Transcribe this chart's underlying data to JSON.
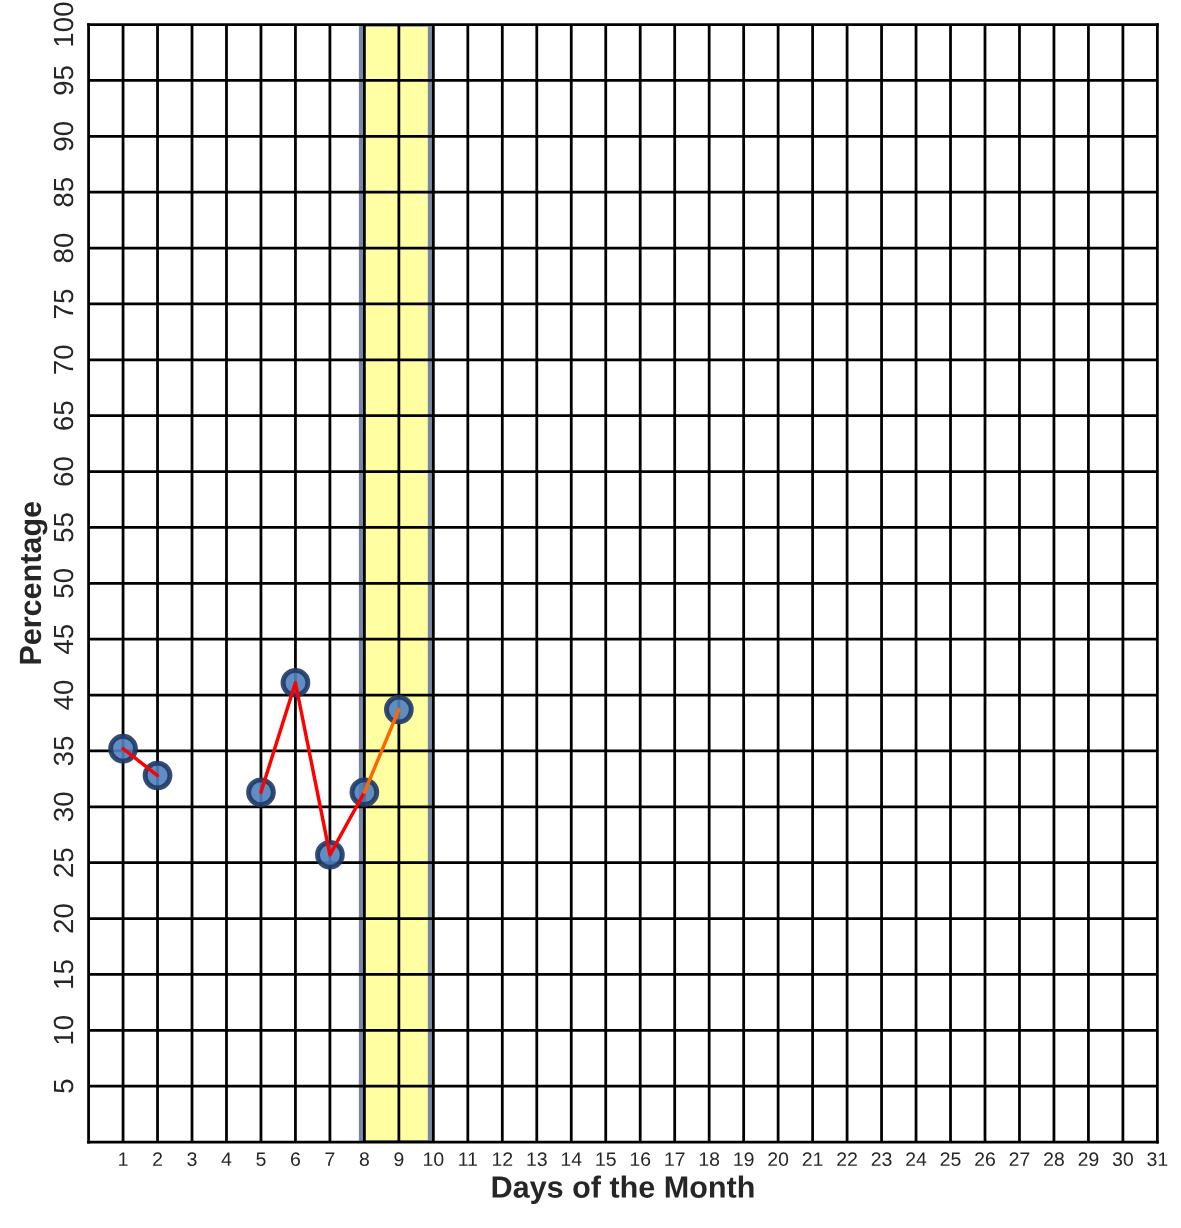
{
  "chart_data": {
    "type": "line",
    "xlabel": "Days of the Month",
    "ylabel": "Percentage",
    "xlim": [
      0,
      31
    ],
    "xticks": [
      1,
      2,
      3,
      4,
      5,
      6,
      7,
      8,
      9,
      10,
      11,
      12,
      13,
      14,
      15,
      16,
      17,
      18,
      19,
      20,
      21,
      22,
      23,
      24,
      25,
      26,
      27,
      28,
      29,
      30,
      31
    ],
    "ylim": [
      0,
      100
    ],
    "yticks": [
      5,
      10,
      15,
      20,
      25,
      30,
      35,
      40,
      45,
      50,
      55,
      60,
      65,
      70,
      75,
      80,
      85,
      90,
      95,
      100
    ],
    "grid": true,
    "legend": false,
    "series": [
      {
        "color": "#ff0000",
        "x": [
          1,
          2,
          3,
          4,
          5,
          6,
          7,
          8
        ],
        "values": [
          35.2,
          32.8,
          null,
          null,
          31.3,
          41.1,
          25.7,
          31.3
        ],
        "marker": "none"
      },
      {
        "color": "#ff6600",
        "x": [
          8,
          9
        ],
        "values": [
          31.3,
          38.7
        ],
        "marker": "none"
      },
      {
        "type": "scatter",
        "color": "#4f81bd",
        "x": [
          1,
          2,
          5,
          6,
          7,
          8,
          9
        ],
        "values": [
          35.2,
          32.8,
          31.3,
          41.1,
          25.7,
          31.3,
          38.7
        ],
        "marker": "circle"
      }
    ],
    "bands": [
      {
        "axis": "x",
        "from": 7.9,
        "to": 9.9,
        "color": "#ffff66"
      }
    ]
  }
}
